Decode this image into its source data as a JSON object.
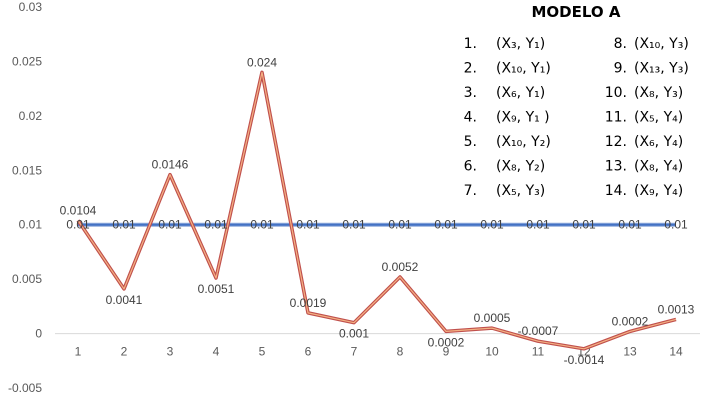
{
  "chart_data": {
    "type": "line",
    "x": [
      1,
      2,
      3,
      4,
      5,
      6,
      7,
      8,
      9,
      10,
      11,
      12,
      13,
      14
    ],
    "categories": [
      "1",
      "2",
      "3",
      "4",
      "5",
      "6",
      "7",
      "8",
      "9",
      "10",
      "11",
      "12",
      "13",
      "14"
    ],
    "ylim": [
      -0.005,
      0.03
    ],
    "y_ticks": [
      "0.03",
      "0.025",
      "0.02",
      "0.015",
      "0.01",
      "0.005",
      "0",
      "-0.005"
    ],
    "y_tick_values": [
      0.03,
      0.025,
      0.02,
      0.015,
      0.01,
      0.005,
      0,
      -0.005
    ],
    "grid": false,
    "series": [
      {
        "color": "#ED7D31",
        "outline": "#C0504D",
        "values": [
          0.0104,
          0.0041,
          0.0146,
          0.0051,
          0.024,
          0.0019,
          0.001,
          0.0052,
          0.0002,
          0.0005,
          -0.0007,
          -0.0014,
          0.0002,
          0.0013
        ],
        "labels": [
          "0.0104",
          "0.0041",
          "0.0146",
          "0.0051",
          "0.024",
          "0.0019",
          "0.001",
          "0.0052",
          "0.0002",
          "0.0005",
          "-0.0007",
          "-0.0014",
          "0.0002",
          "0.0013"
        ]
      },
      {
        "color": "#4472C4",
        "values": [
          0.01,
          0.01,
          0.01,
          0.01,
          0.01,
          0.01,
          0.01,
          0.01,
          0.01,
          0.01,
          0.01,
          0.01,
          0.01,
          0.01
        ],
        "labels": [
          "0.01",
          "0.01",
          "0.01",
          "0.01",
          "0.01",
          "0.01",
          "0.01",
          "0.01",
          "0.01",
          "0.01",
          "0.01",
          "0.01",
          "0.01",
          "0.01"
        ]
      }
    ]
  },
  "legend_box": {
    "title": "MODELO A",
    "items": [
      {
        "num": "1.",
        "text": "(X₃, Y₁)"
      },
      {
        "num": "2.",
        "text": "(X₁₀, Y₁)"
      },
      {
        "num": "3.",
        "text": "(X₆, Y₁)"
      },
      {
        "num": "4.",
        "text": "(X₉, Y₁ )"
      },
      {
        "num": "5.",
        "text": "(X₁₀, Y₂)"
      },
      {
        "num": "6.",
        "text": "(X₈, Y₂)"
      },
      {
        "num": "7.",
        "text": "(X₅, Y₃)"
      },
      {
        "num": "8.",
        "text": "(X₁₀, Y₃)"
      },
      {
        "num": "9.",
        "text": "(X₁₃, Y₃)"
      },
      {
        "num": "10.",
        "text": "(X₈, Y₃)"
      },
      {
        "num": "11.",
        "text": "(X₅, Y₄)"
      },
      {
        "num": "12.",
        "text": "(X₆, Y₄)"
      },
      {
        "num": "13.",
        "text": "(X₈, Y₄)"
      },
      {
        "num": "14.",
        "text": "(X₉, Y₄)"
      }
    ]
  }
}
